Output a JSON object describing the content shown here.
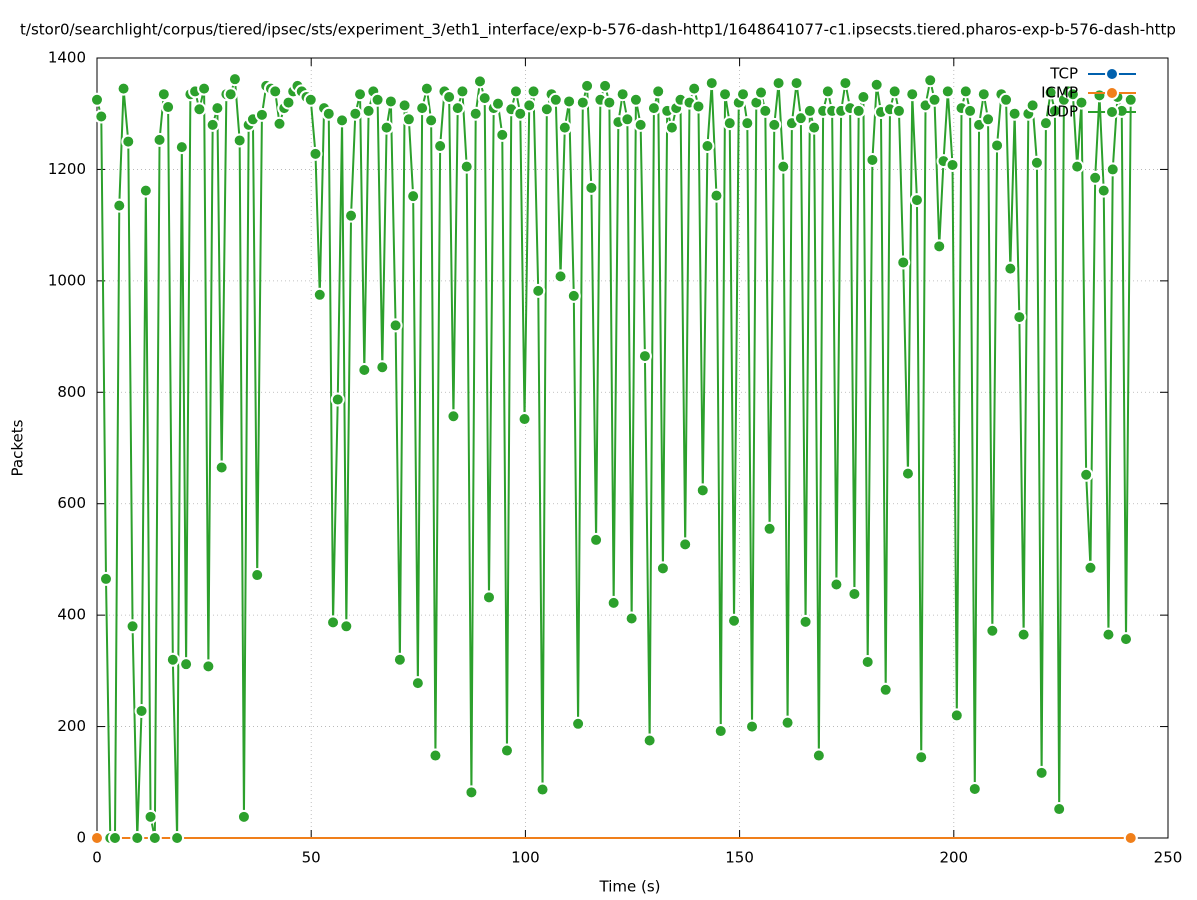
{
  "chart_data": {
    "type": "line",
    "title": "t/stor0/searchlight/corpus/tiered/ipsec/sts/experiment_3/eth1_interface/exp-b-576-dash-http1/1648641077-c1.ipsecsts.tiered.pharos-exp-b-576-dash-http",
    "x_label": "Time (s)",
    "y_label": "Packets",
    "xlim": [
      0,
      250
    ],
    "xticks": [
      0,
      50,
      100,
      150,
      200,
      250
    ],
    "ylim": [
      0,
      1400
    ],
    "yticks": [
      0,
      200,
      400,
      600,
      800,
      1000,
      1200,
      1400
    ],
    "grid": true,
    "legend": "top-right",
    "series": [
      {
        "name": "TCP",
        "color": "#0060ad",
        "x": [
          0,
          241.3
        ],
        "values": [
          0,
          0
        ]
      },
      {
        "name": "ICMP",
        "color": "#f07f1a",
        "x": [
          0,
          241.3
        ],
        "values": [
          0,
          0
        ]
      },
      {
        "name": "UDP",
        "color": "#2ca02c",
        "x": [
          0,
          1,
          2.1,
          3.1,
          4.2,
          5.2,
          6.2,
          7.3,
          8.3,
          9.4,
          10.4,
          11.4,
          12.5,
          13.5,
          14.6,
          15.6,
          16.6,
          17.7,
          18.7,
          19.8,
          20.8,
          21.8,
          22.9,
          23.9,
          25,
          26,
          27,
          28.1,
          29.1,
          30.2,
          31.2,
          32.2,
          33.3,
          34.3,
          35.4,
          36.4,
          37.4,
          38.5,
          39.5,
          40.6,
          41.6,
          42.6,
          43.7,
          44.7,
          45.8,
          46.8,
          47.8,
          48.9,
          49.9,
          51,
          52,
          53,
          54.1,
          55.1,
          56.2,
          57.2,
          58.2,
          59.3,
          60.3,
          61.4,
          62.4,
          63.4,
          64.5,
          65.5,
          66.6,
          67.6,
          68.6,
          69.7,
          70.7,
          71.8,
          72.8,
          73.8,
          74.9,
          75.9,
          77,
          78,
          79,
          80.1,
          81.1,
          82.2,
          83.2,
          84.2,
          85.3,
          86.3,
          87.4,
          88.4,
          89.4,
          90.5,
          91.5,
          92.6,
          93.6,
          94.6,
          95.7,
          96.7,
          97.8,
          98.8,
          99.8,
          100.9,
          101.9,
          103,
          104,
          105,
          106.1,
          107.1,
          108.2,
          109.2,
          110.2,
          111.3,
          112.3,
          113.4,
          114.4,
          115.4,
          116.5,
          117.5,
          118.6,
          119.6,
          120.6,
          121.7,
          122.7,
          123.8,
          124.8,
          125.8,
          126.9,
          127.9,
          129,
          130,
          131,
          132.1,
          133.1,
          134.2,
          135.2,
          136.2,
          137.3,
          138.3,
          139.4,
          140.4,
          141.4,
          142.5,
          143.5,
          144.6,
          145.6,
          146.6,
          147.7,
          148.7,
          149.8,
          150.8,
          151.8,
          152.9,
          153.9,
          155,
          156,
          157,
          158.1,
          159.1,
          160.2,
          161.2,
          162.2,
          163.3,
          164.3,
          165.4,
          166.4,
          167.4,
          168.5,
          169.5,
          170.6,
          171.6,
          172.6,
          173.7,
          174.7,
          175.8,
          176.8,
          177.8,
          178.9,
          179.9,
          181,
          182,
          183,
          184.1,
          185.1,
          186.2,
          187.2,
          188.2,
          189.3,
          190.3,
          191.4,
          192.4,
          193.4,
          194.5,
          195.5,
          196.6,
          197.6,
          198.6,
          199.7,
          200.7,
          201.8,
          202.8,
          203.8,
          204.9,
          205.9,
          207,
          208,
          209,
          210.1,
          211.1,
          212.2,
          213.2,
          214.2,
          215.3,
          216.3,
          217.4,
          218.4,
          219.4,
          220.5,
          221.5,
          222.6,
          223.6,
          224.6,
          225.7,
          226.7,
          227.8,
          228.8,
          229.8,
          230.9,
          231.9,
          233,
          234,
          235,
          236.1,
          237.1,
          238.2,
          239.2,
          240.2,
          241.3
        ],
        "values": [
          1325,
          1295,
          465,
          0,
          0,
          1135,
          1345,
          1250,
          380,
          0,
          228,
          1162,
          38,
          0,
          1253,
          1335,
          1312,
          320,
          0,
          1240,
          312,
          1335,
          1340,
          1308,
          1345,
          308,
          1280,
          1310,
          665,
          1335,
          1335,
          1362,
          1252,
          38,
          1280,
          1290,
          472,
          1298,
          1350,
          1345,
          1340,
          1282,
          1310,
          1320,
          1340,
          1350,
          1340,
          1330,
          1325,
          1228,
          975,
          1310,
          1300,
          387,
          787,
          1288,
          380,
          1117,
          1300,
          1335,
          840,
          1305,
          1340,
          1325,
          845,
          1275,
          1322,
          920,
          320,
          1315,
          1290,
          1152,
          278,
          1310,
          1345,
          1288,
          148,
          1242,
          1340,
          1330,
          757,
          1310,
          1340,
          1205,
          82,
          1300,
          1358,
          1328,
          432,
          1310,
          1318,
          1262,
          157,
          1308,
          1340,
          1300,
          752,
          1315,
          1340,
          982,
          87,
          1308,
          1335,
          1325,
          1008,
          1275,
          1322,
          973,
          205,
          1320,
          1350,
          1167,
          535,
          1325,
          1350,
          1320,
          422,
          1285,
          1335,
          1290,
          394,
          1325,
          1280,
          865,
          175,
          1310,
          1340,
          484,
          1305,
          1275,
          1310,
          1325,
          527,
          1320,
          1345,
          1313,
          624,
          1242,
          1355,
          1153,
          192,
          1335,
          1283,
          390,
          1320,
          1335,
          1283,
          200,
          1320,
          1338,
          1305,
          555,
          1280,
          1355,
          1205,
          207,
          1283,
          1355,
          1292,
          388,
          1305,
          1275,
          148,
          1305,
          1340,
          1305,
          455,
          1305,
          1355,
          1310,
          438,
          1305,
          1330,
          316,
          1217,
          1352,
          1303,
          266,
          1308,
          1340,
          1305,
          1033,
          654,
          1335,
          1145,
          145,
          1315,
          1360,
          1325,
          1062,
          1215,
          1340,
          1208,
          220,
          1310,
          1340,
          1305,
          88,
          1280,
          1335,
          1290,
          372,
          1243,
          1335,
          1325,
          1022,
          1300,
          935,
          365,
          1300,
          1315,
          1212,
          117,
          1283,
          1338,
          1305,
          52,
          1325,
          1340,
          1335,
          1205,
          1320,
          652,
          485,
          1185,
          1333,
          1162,
          365,
          1200,
          1330,
          1305,
          357,
          1325
        ]
      }
    ]
  }
}
